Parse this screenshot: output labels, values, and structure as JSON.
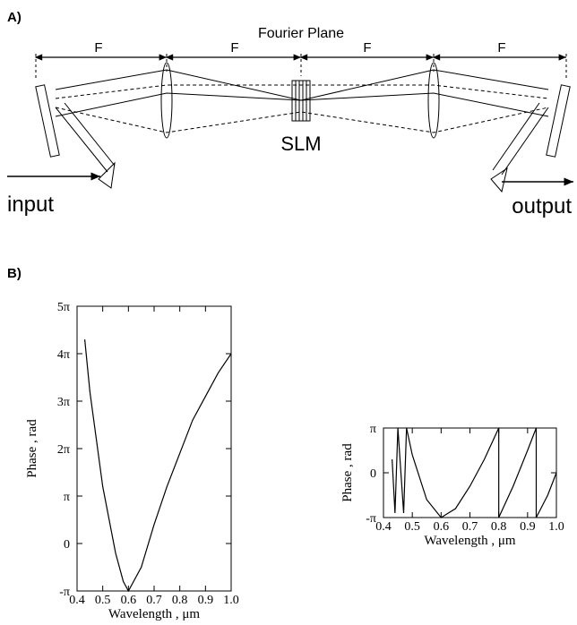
{
  "panel_a": {
    "label": "A)",
    "title": "Fourier Plane",
    "spans": [
      "F",
      "F",
      "F",
      "F"
    ],
    "slm": "SLM",
    "input": "input",
    "output": "output"
  },
  "panel_b": {
    "label": "B)"
  },
  "chart_data": [
    {
      "type": "line",
      "xlabel": "Wavelength , μm",
      "ylabel": "Phase , rad",
      "color": "#000000",
      "xlim": [
        0.4,
        1.0
      ],
      "ylim": [
        -1,
        5
      ],
      "xticks": [
        0.4,
        0.5,
        0.6,
        0.7,
        0.8,
        0.9,
        {
          "value": 1,
          "label": "1.0"
        }
      ],
      "yticks": [
        {
          "value": -1,
          "label": "-π"
        },
        0,
        {
          "value": 1,
          "label": "π"
        },
        {
          "value": 2,
          "label": "2π"
        },
        {
          "value": 3,
          "label": "3π"
        },
        {
          "value": 4,
          "label": "4π"
        },
        {
          "value": 5,
          "label": "5π"
        }
      ],
      "x": [
        0.43,
        0.45,
        0.5,
        0.55,
        0.58,
        0.6,
        0.65,
        0.7,
        0.75,
        0.8,
        0.85,
        0.9,
        0.95,
        1.0
      ],
      "values": [
        4.3,
        3.2,
        1.2,
        -0.2,
        -0.8,
        -1.0,
        -0.5,
        0.4,
        1.2,
        1.9,
        2.6,
        3.1,
        3.6,
        4.0
      ]
    },
    {
      "type": "line",
      "xlabel": "Wavelength , μm",
      "ylabel": "Phase , rad",
      "color": "#000000",
      "xlim": [
        0.4,
        1.0
      ],
      "ylim": [
        -1,
        1
      ],
      "xticks": [
        0.4,
        0.5,
        0.6,
        0.7,
        0.8,
        0.9,
        {
          "value": 1,
          "label": "1.0"
        }
      ],
      "yticks": [
        {
          "value": -1,
          "label": "-π"
        },
        0,
        {
          "value": 1,
          "label": "π"
        }
      ],
      "x": [
        0.43,
        0.44,
        0.45,
        0.47,
        0.48,
        0.5,
        0.55,
        0.6,
        0.65,
        0.7,
        0.75,
        0.8,
        0.8,
        0.85,
        0.9,
        0.93,
        0.93,
        0.97,
        1.0
      ],
      "values": [
        0.3,
        -0.9,
        1.0,
        -0.9,
        1.0,
        0.4,
        -0.6,
        -1.0,
        -0.8,
        -0.3,
        0.3,
        1.0,
        -1.0,
        -0.3,
        0.5,
        1.0,
        -1.0,
        -0.5,
        0.0
      ]
    }
  ]
}
